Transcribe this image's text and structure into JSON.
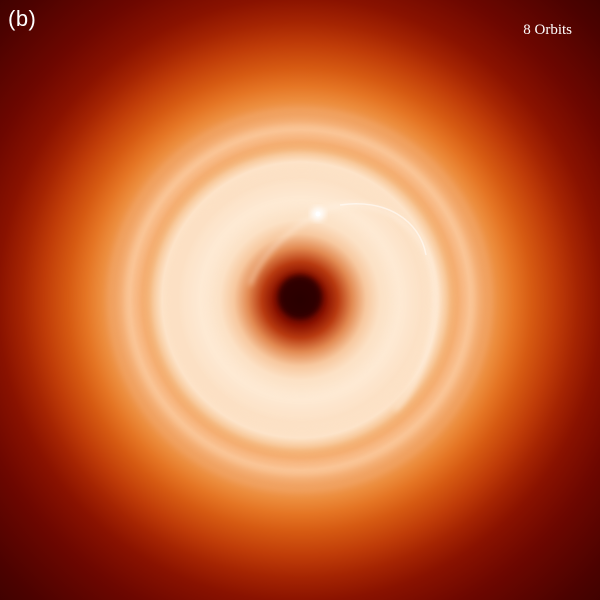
{
  "figure": {
    "panel_label": "(b)",
    "orbit_label": "8 Orbits"
  },
  "colors": {
    "background_dark": "#2e0000",
    "outer_red": "#a52402",
    "mid_orange": "#e57524",
    "inner_cream": "#fde6cd",
    "center_dark": "#2a0000"
  }
}
